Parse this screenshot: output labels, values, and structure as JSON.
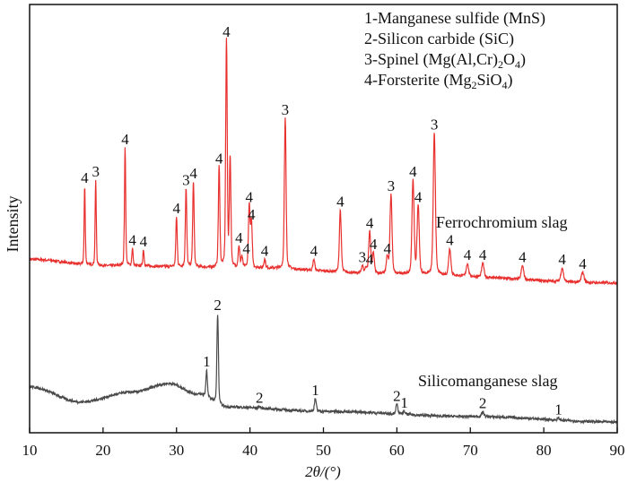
{
  "chart_data": {
    "type": "line",
    "xlabel": "2θ/(°)",
    "ylabel": "Intensity",
    "xlim": [
      10,
      90
    ],
    "ylim": [
      0,
      100
    ],
    "xticks": [
      10,
      20,
      30,
      40,
      50,
      60,
      70,
      80,
      90
    ],
    "grid": false,
    "legend_position": "top-right",
    "legend": [
      {
        "parts": [
          "1-Manganese sulfide (MnS)"
        ]
      },
      {
        "parts": [
          "2-Silicon carbide (SiC)"
        ]
      },
      {
        "parts": [
          "3-Spinel (Mg(Al,Cr)",
          "2",
          "O",
          "4",
          ")"
        ]
      },
      {
        "parts": [
          "4-Forsterite (Mg",
          "2",
          "SiO",
          "4",
          ")"
        ]
      }
    ],
    "series": [
      {
        "name": "Ferrochromium slag",
        "color": "#e8312f",
        "baseline": [
          [
            10,
            40.5
          ],
          [
            20,
            39
          ],
          [
            40,
            38.5
          ],
          [
            60,
            37
          ],
          [
            90,
            35
          ]
        ],
        "peaks": [
          {
            "x": 17.5,
            "y": 57.5,
            "label": "4"
          },
          {
            "x": 19.0,
            "y": 59,
            "label": "3"
          },
          {
            "x": 23.0,
            "y": 66.5,
            "label": "4"
          },
          {
            "x": 24.0,
            "y": 43,
            "label": "4"
          },
          {
            "x": 25.5,
            "y": 42.7,
            "label": "4"
          },
          {
            "x": 30.0,
            "y": 50.4,
            "label": "4"
          },
          {
            "x": 31.3,
            "y": 57,
            "label": "3"
          },
          {
            "x": 32.3,
            "y": 58.6,
            "label": "4"
          },
          {
            "x": 35.8,
            "y": 62,
            "label": "4"
          },
          {
            "x": 36.8,
            "y": 91.6,
            "label": "4"
          },
          {
            "x": 37.3,
            "y": 64,
            "label": ""
          },
          {
            "x": 38.5,
            "y": 43.5,
            "label": "4"
          },
          {
            "x": 38.9,
            "y": 41,
            "label": "4"
          },
          {
            "x": 39.9,
            "y": 53,
            "label": "4"
          },
          {
            "x": 40.2,
            "y": 49,
            "label": "4"
          },
          {
            "x": 42.0,
            "y": 40.5,
            "label": "4"
          },
          {
            "x": 44.8,
            "y": 73.4,
            "label": "3"
          },
          {
            "x": 48.7,
            "y": 40.5,
            "label": "4"
          },
          {
            "x": 52.3,
            "y": 52,
            "label": "4"
          },
          {
            "x": 55.3,
            "y": 39,
            "label": "3"
          },
          {
            "x": 55.8,
            "y": 38.5,
            "label": "4"
          },
          {
            "x": 56.3,
            "y": 47,
            "label": "4"
          },
          {
            "x": 56.8,
            "y": 42,
            "label": "4"
          },
          {
            "x": 58.7,
            "y": 41,
            "label": "4"
          },
          {
            "x": 59.2,
            "y": 55.6,
            "label": "3"
          },
          {
            "x": 62.2,
            "y": 59,
            "label": "4"
          },
          {
            "x": 62.9,
            "y": 53,
            "label": "4"
          },
          {
            "x": 65.1,
            "y": 70,
            "label": "3"
          },
          {
            "x": 67.2,
            "y": 43,
            "label": "4"
          },
          {
            "x": 69.6,
            "y": 39.5,
            "label": "4"
          },
          {
            "x": 71.7,
            "y": 39.5,
            "label": "4"
          },
          {
            "x": 77.1,
            "y": 39,
            "label": "4"
          },
          {
            "x": 82.5,
            "y": 38.5,
            "label": "4"
          },
          {
            "x": 85.3,
            "y": 37.5,
            "label": "4"
          }
        ]
      },
      {
        "name": "Silicomanganese slag",
        "color": "#4a4a4a",
        "baseline": [
          [
            10,
            10.7
          ],
          [
            17,
            7.2
          ],
          [
            24,
            9.5
          ],
          [
            29,
            11.5
          ],
          [
            33,
            9
          ],
          [
            37,
            6
          ],
          [
            50,
            5
          ],
          [
            70,
            3.8
          ],
          [
            90,
            2.5
          ]
        ],
        "peaks": [
          {
            "x": 34.1,
            "y": 14.6,
            "label": "1"
          },
          {
            "x": 35.6,
            "y": 27.8,
            "label": "2"
          },
          {
            "x": 41.3,
            "y": 6.2,
            "label": "2"
          },
          {
            "x": 48.9,
            "y": 8,
            "label": "1"
          },
          {
            "x": 60.0,
            "y": 6.6,
            "label": "2"
          },
          {
            "x": 61.0,
            "y": 5,
            "label": "1"
          },
          {
            "x": 71.7,
            "y": 4.9,
            "label": "2"
          },
          {
            "x": 82.0,
            "y": 3.4,
            "label": "1"
          }
        ]
      }
    ]
  }
}
